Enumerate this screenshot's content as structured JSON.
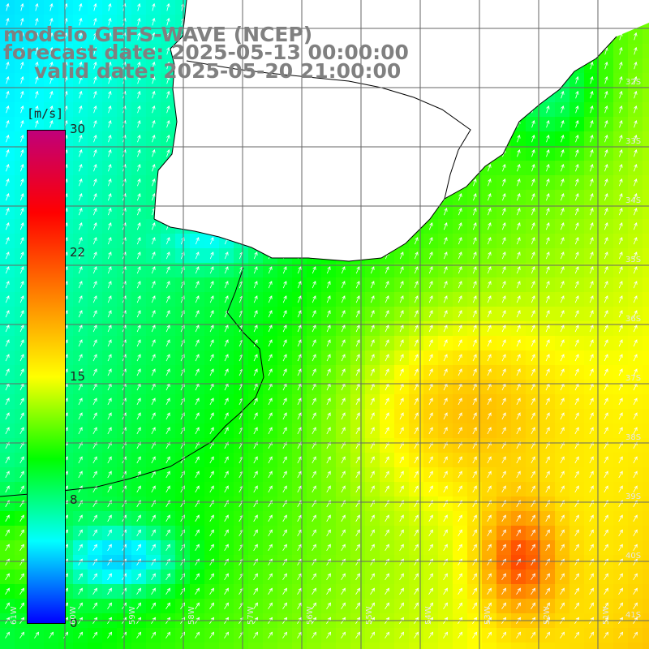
{
  "title": {
    "line1": "modelo GEFS-WAVE (NCEP)",
    "line2": "forecast date: 2025-05-13 00:00:00",
    "line3": "valid date: 2025-05-20 21:00:00"
  },
  "colorbar": {
    "unit": "[m/s]",
    "ticks": [
      "30",
      "22",
      "15",
      "8",
      "0"
    ],
    "range": [
      0,
      30
    ],
    "colors": [
      "#0000ff",
      "#00ffff",
      "#00ff00",
      "#ffff00",
      "#ff8000",
      "#ff0000",
      "#c0007a"
    ]
  },
  "map_labels": {
    "latitudes": [
      "32S",
      "33S",
      "34S",
      "35S",
      "36S",
      "37S",
      "38S",
      "39S",
      "40S",
      "41S"
    ],
    "longitudes": [
      "61W",
      "60W",
      "59W",
      "58W",
      "57W",
      "56W",
      "55W",
      "54W",
      "53W",
      "52W",
      "51W"
    ]
  },
  "land_color": "#ffffff",
  "grid_color": "#666666"
}
